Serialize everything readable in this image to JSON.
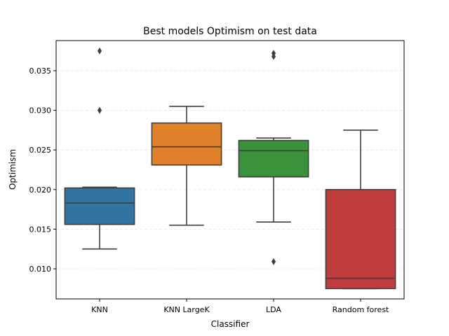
{
  "chart_data": {
    "type": "box",
    "title": "Best models Optimism on test data",
    "xlabel": "Classifier",
    "ylabel": "Optimism",
    "ylim": [
      0.0062,
      0.0388
    ],
    "yticks": [
      "0.010",
      "0.015",
      "0.020",
      "0.025",
      "0.030",
      "0.035"
    ],
    "ytick_values": [
      0.01,
      0.015,
      0.02,
      0.025,
      0.03,
      0.035
    ],
    "grid": "horizontal dashed",
    "categories": [
      "KNN",
      "KNN LargeK",
      "LDA",
      "Random forest"
    ],
    "boxes": [
      {
        "category": "KNN",
        "color": "#3274a1",
        "whisker_low": 0.0125,
        "q1": 0.0156,
        "median": 0.0183,
        "q3": 0.0202,
        "whisker_high": 0.0203,
        "outliers": [
          0.0375,
          0.03
        ]
      },
      {
        "category": "KNN LargeK",
        "color": "#e1812c",
        "whisker_low": 0.0155,
        "q1": 0.0231,
        "median": 0.0254,
        "q3": 0.0284,
        "whisker_high": 0.0305,
        "outliers": []
      },
      {
        "category": "LDA",
        "color": "#3a923a",
        "whisker_low": 0.0159,
        "q1": 0.0216,
        "median": 0.0249,
        "q3": 0.0262,
        "whisker_high": 0.0265,
        "outliers": [
          0.0372,
          0.0368,
          0.0109
        ]
      },
      {
        "category": "Random forest",
        "color": "#c03d3e",
        "whisker_low": 0.0075,
        "q1": 0.0075,
        "median": 0.0088,
        "q3": 0.02,
        "whisker_high": 0.0275,
        "outliers": []
      }
    ]
  }
}
